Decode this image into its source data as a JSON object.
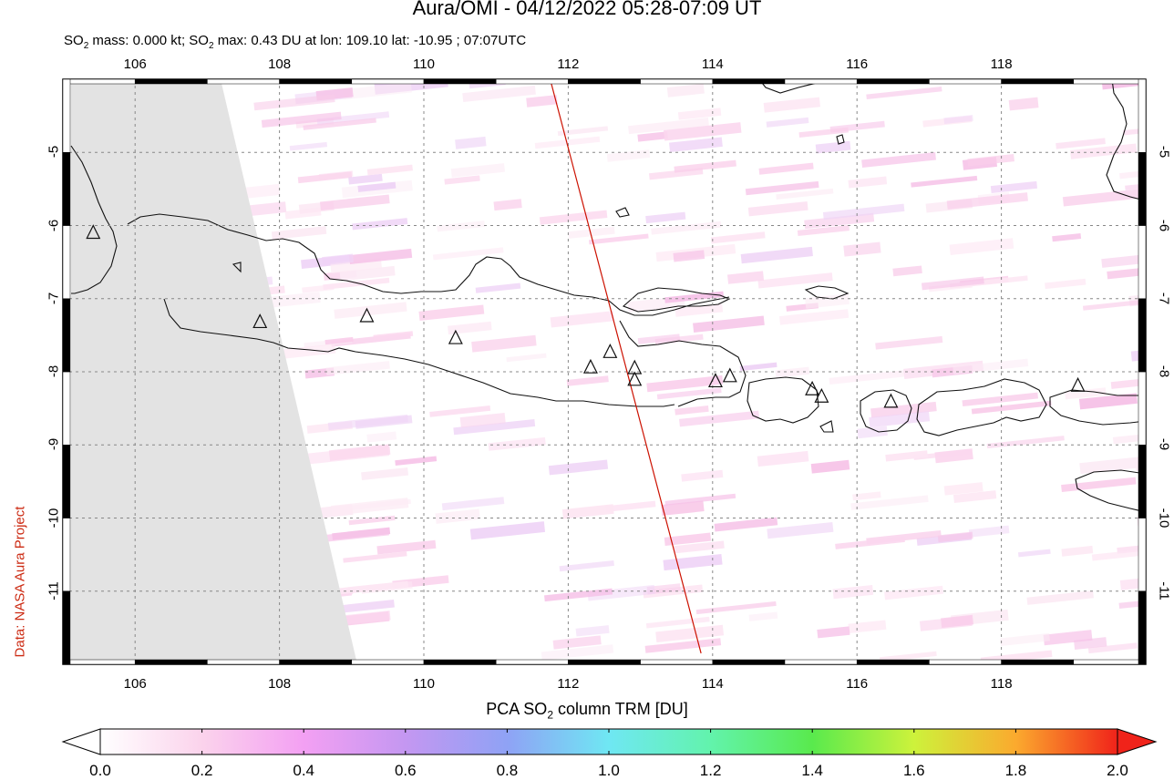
{
  "title": "Aura/OMI - 04/12/2022 05:28-07:09 UT",
  "subtitle": {
    "p1": "SO",
    "p1_sub": "2",
    "p2": " mass: 0.000 kt; SO",
    "p2_sub": "2",
    "p3": " max: 0.43 DU at lon: 109.10 lat: -10.95 ; 07:07UTC"
  },
  "side_label": "Data: NASA Aura Project",
  "map": {
    "lon_range": [
      105,
      120
    ],
    "lat_range": [
      -12,
      -4
    ],
    "lon_ticks": [
      "106",
      "108",
      "110",
      "112",
      "114",
      "116",
      "118"
    ],
    "lat_ticks": [
      "-5",
      "-6",
      "-7",
      "-8",
      "-9",
      "-10",
      "-11"
    ],
    "volcano_icon": "triangle-outline",
    "volcanoes": [
      {
        "lon": 105.42,
        "lat": -6.1
      },
      {
        "lon": 107.73,
        "lat": -7.32
      },
      {
        "lon": 109.21,
        "lat": -7.24
      },
      {
        "lon": 110.44,
        "lat": -7.54
      },
      {
        "lon": 112.31,
        "lat": -7.94
      },
      {
        "lon": 112.58,
        "lat": -7.73
      },
      {
        "lon": 112.92,
        "lat": -7.95
      },
      {
        "lon": 112.92,
        "lat": -8.11
      },
      {
        "lon": 114.04,
        "lat": -8.13
      },
      {
        "lon": 114.24,
        "lat": -8.06
      },
      {
        "lon": 115.38,
        "lat": -8.24
      },
      {
        "lon": 115.51,
        "lat": -8.34
      },
      {
        "lon": 116.47,
        "lat": -8.41
      },
      {
        "lon": 119.06,
        "lat": -8.19
      }
    ],
    "orbit_track": {
      "start": {
        "lon": 111.75,
        "lat": -4.0
      },
      "end": {
        "lon": 113.84,
        "lat": -11.85
      },
      "color": "#cc1100"
    },
    "no_data_color": "#e3e3e3"
  },
  "colorbar": {
    "title_p1": "PCA SO",
    "title_sub": "2",
    "title_p2": " column TRM [DU]",
    "ticks": [
      "0.0",
      "0.2",
      "0.4",
      "0.6",
      "0.8",
      "1.0",
      "1.2",
      "1.4",
      "1.6",
      "1.8",
      "2.0"
    ],
    "range": [
      0,
      2.0
    ],
    "colors": [
      "#ffffff",
      "#fbd3ec",
      "#f3a0f3",
      "#c497f1",
      "#8fa2f5",
      "#6fe7f3",
      "#62f3ac",
      "#59ea4d",
      "#cdf23b",
      "#fbaa2e",
      "#f0231a"
    ]
  }
}
